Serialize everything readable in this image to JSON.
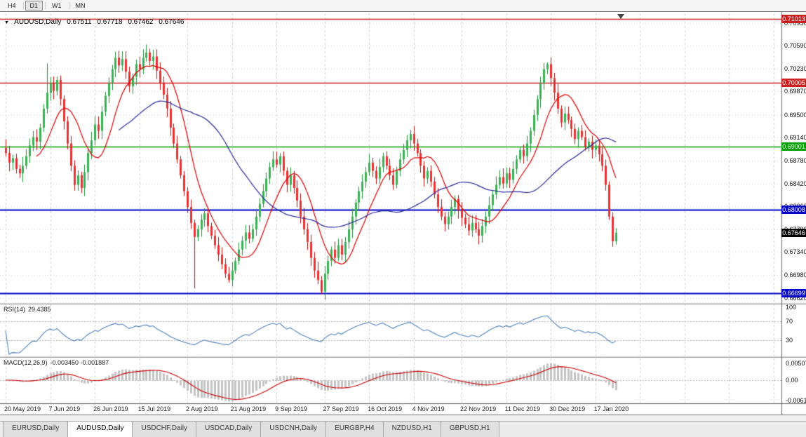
{
  "toolbar": {
    "buttons": [
      {
        "label": "H4",
        "active": false
      },
      {
        "label": "D1",
        "active": true
      },
      {
        "label": "W1",
        "active": false
      },
      {
        "label": "MN",
        "active": false
      }
    ]
  },
  "chart": {
    "info": {
      "symbol": "AUDUSD,Daily",
      "open": "0.67511",
      "high": "0.67718",
      "low": "0.67462",
      "close": "0.67646"
    },
    "price_axis": {
      "ticks": [
        "0.70950",
        "0.70590",
        "0.70230",
        "0.69870",
        "0.69500",
        "0.69140",
        "0.68780",
        "0.68420",
        "0.68060",
        "0.67700",
        "0.67340",
        "0.66980",
        "0.66620"
      ]
    },
    "levels": [
      {
        "price": 0.71013,
        "label": "0.71013",
        "color": "#cc2020",
        "width": 1.4
      },
      {
        "price": 0.70005,
        "label": "0.70005",
        "color": "#cc2020",
        "width": 1.6
      },
      {
        "price": 0.69001,
        "label": "0.69001",
        "color": "#00a000",
        "width": 1.5
      },
      {
        "price": 0.68008,
        "label": "0.68008",
        "color": "#0000c8",
        "width": 1.8
      },
      {
        "price": 0.66699,
        "label": "0.66699",
        "color": "#0000c8",
        "width": 1.8
      }
    ],
    "current_price": {
      "value": 0.67646,
      "label": "0.67646",
      "bg": "#000000"
    }
  },
  "rsi": {
    "name": "RSI(14)",
    "value": "29.4385",
    "ticks": [
      {
        "label": "100",
        "value": 100
      },
      {
        "label": "70",
        "value": 70
      },
      {
        "label": "30",
        "value": 30
      }
    ],
    "levels": [
      70,
      30
    ]
  },
  "macd": {
    "name": "MACD(12,26,9)",
    "values": "-0.003450 -0.001887",
    "ticks": [
      {
        "label": "0.005076",
        "value": 0.005076
      },
      {
        "label": "0.00",
        "value": 0
      },
      {
        "label": "-0.006148",
        "value": -0.006148
      }
    ]
  },
  "tabs": [
    {
      "label": "EURUSD,Daily",
      "active": false
    },
    {
      "label": "AUDUSD,Daily",
      "active": true
    },
    {
      "label": "USDCHF,Daily",
      "active": false
    },
    {
      "label": "USDCAD,Daily",
      "active": false
    },
    {
      "label": "USDCNH,Daily",
      "active": false
    },
    {
      "label": "EURGBP,H4",
      "active": false
    },
    {
      "label": "NZDUSD,H1",
      "active": false
    },
    {
      "label": "GBPUSD,H1",
      "active": false
    }
  ],
  "chart_data": {
    "type": "candlestick",
    "symbol": "AUDUSD",
    "timeframe": "Daily",
    "price_range": {
      "top": 0.711,
      "bottom": 0.6655
    },
    "first_open": 0.6898,
    "last_bar": {
      "open": 0.67511,
      "high": 0.67718,
      "low": 0.67462,
      "close": 0.67646
    },
    "closes": [
      0.689,
      0.6875,
      0.6882,
      0.6865,
      0.6858,
      0.687,
      0.6885,
      0.6902,
      0.6915,
      0.6908,
      0.693,
      0.696,
      0.6985,
      0.7,
      0.6988,
      0.7005,
      0.6975,
      0.694,
      0.6905,
      0.687,
      0.684,
      0.6855,
      0.6835,
      0.686,
      0.689,
      0.691,
      0.6935,
      0.6925,
      0.6955,
      0.698,
      0.7,
      0.7022,
      0.704,
      0.7028,
      0.7038,
      0.7018,
      0.6995,
      0.701,
      0.703,
      0.7022,
      0.704,
      0.7048,
      0.7035,
      0.7042,
      0.702,
      0.7,
      0.6982,
      0.696,
      0.693,
      0.6905,
      0.688,
      0.6855,
      0.683,
      0.6805,
      0.678,
      0.6758,
      0.677,
      0.6785,
      0.6795,
      0.6775,
      0.676,
      0.6745,
      0.673,
      0.6715,
      0.67,
      0.669,
      0.6705,
      0.672,
      0.6738,
      0.6752,
      0.6765,
      0.6755,
      0.677,
      0.679,
      0.681,
      0.683,
      0.685,
      0.6868,
      0.688,
      0.6872,
      0.6885,
      0.6862,
      0.684,
      0.6855,
      0.6835,
      0.6815,
      0.679,
      0.677,
      0.675,
      0.6725,
      0.6705,
      0.669,
      0.6672,
      0.67,
      0.672,
      0.6738,
      0.6725,
      0.6745,
      0.673,
      0.675,
      0.677,
      0.679,
      0.6812,
      0.683,
      0.6845,
      0.686,
      0.6875,
      0.6862,
      0.685,
      0.6868,
      0.6885,
      0.687,
      0.6855,
      0.684,
      0.6862,
      0.688,
      0.6895,
      0.691,
      0.692,
      0.6905,
      0.689,
      0.687,
      0.685,
      0.6862,
      0.6845,
      0.6825,
      0.6805,
      0.679,
      0.6778,
      0.679,
      0.6805,
      0.6818,
      0.68,
      0.6788,
      0.6778,
      0.6768,
      0.678,
      0.677,
      0.676,
      0.6775,
      0.679,
      0.6808,
      0.6825,
      0.684,
      0.6852,
      0.6842,
      0.6858,
      0.6848,
      0.6865,
      0.688,
      0.6895,
      0.6885,
      0.6905,
      0.6925,
      0.695,
      0.6975,
      0.7,
      0.7022,
      0.703,
      0.7008,
      0.6985,
      0.696,
      0.6938,
      0.6952,
      0.6942,
      0.6928,
      0.6912,
      0.6925,
      0.6915,
      0.69,
      0.6908,
      0.6895,
      0.6902,
      0.6888,
      0.687,
      0.684,
      0.679,
      0.67511,
      0.67646
    ],
    "wick_overrides": {
      "12": {
        "high": 0.7031
      },
      "22": {
        "low": 0.6827
      },
      "41": {
        "high": 0.7061
      },
      "55": {
        "low": 0.6677
      },
      "65": {
        "low": 0.6686
      },
      "92": {
        "low": 0.6668
      },
      "158": {
        "high": 0.7033
      }
    },
    "date_ticks": [
      {
        "label": "20 May 2019",
        "index": 0
      },
      {
        "label": "7 Jun 2019",
        "index": 13
      },
      {
        "label": "26 Jun 2019",
        "index": 26
      },
      {
        "label": "15 Jul 2019",
        "index": 39
      },
      {
        "label": "2 Aug 2019",
        "index": 53
      },
      {
        "label": "21 Aug 2019",
        "index": 66
      },
      {
        "label": "9 Sep 2019",
        "index": 79
      },
      {
        "label": "27 Sep 2019",
        "index": 93
      },
      {
        "label": "16 Oct 2019",
        "index": 106
      },
      {
        "label": "4 Nov 2019",
        "index": 119
      },
      {
        "label": "22 Nov 2019",
        "index": 133
      },
      {
        "label": "11 Dec 2019",
        "index": 146
      },
      {
        "label": "30 Dec 2019",
        "index": 159
      },
      {
        "label": "17 Jan 2020",
        "index": 172
      }
    ],
    "indicators": {
      "ma_fast_period": 10,
      "ma_slow_period": 34,
      "rsi_period": 14,
      "macd_params": [
        12,
        26,
        9
      ],
      "macd_range": {
        "max": 0.0063,
        "min": -0.0068
      }
    },
    "colors": {
      "up_fill": "#3cb054",
      "up_stroke": "#1e8c3a",
      "down_fill": "#e63232",
      "down_stroke": "#bb1111",
      "ma_fast": "#dd0000",
      "ma_slow": "#26269b",
      "rsi_line": "#4f81bd",
      "rsi_level": "#b4b4b4",
      "macd_hist": "#c4c4c4",
      "macd_signal": "#cc0000",
      "grid": "#d2d2d2",
      "axis_line": "#666666"
    }
  }
}
